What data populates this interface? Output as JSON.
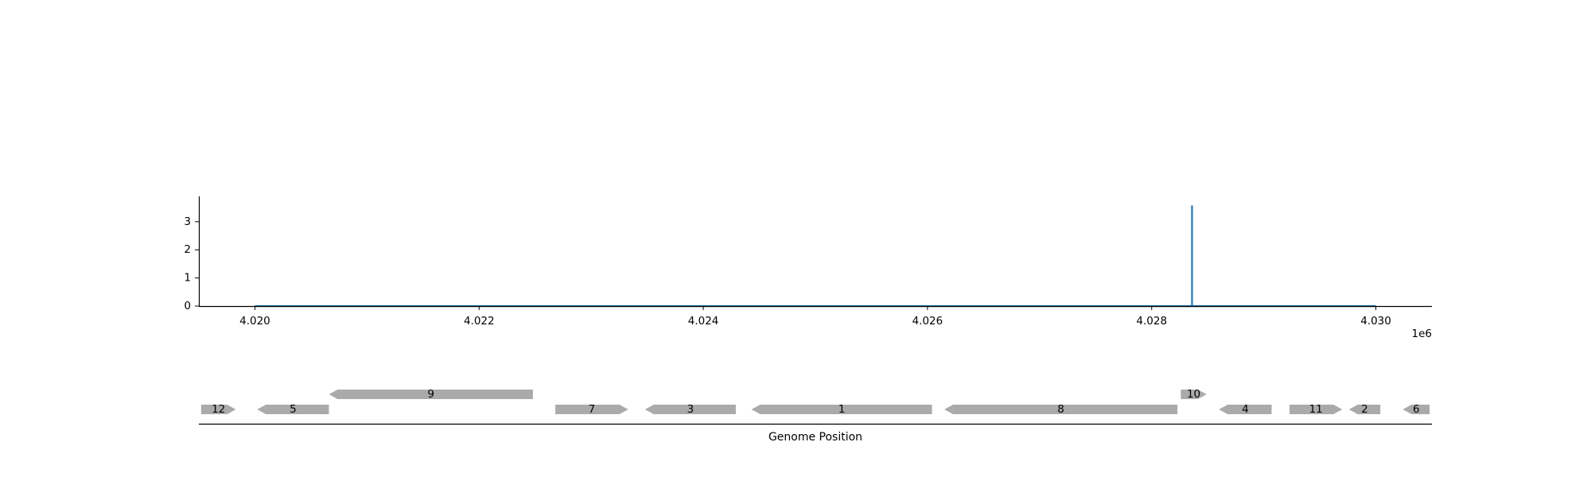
{
  "chart_data": [
    {
      "type": "line",
      "title": "",
      "xlabel": "",
      "ylabel": "",
      "offset_label": "1e6",
      "xlim": [
        4019500,
        4030500
      ],
      "ylim": [
        0,
        3.9
      ],
      "x_ticks": [
        4020000,
        4022000,
        4024000,
        4026000,
        4028000,
        4030000
      ],
      "x_tick_labels": [
        "4.020",
        "4.022",
        "4.024",
        "4.026",
        "4.028",
        "4.030"
      ],
      "y_ticks": [
        0,
        1,
        2,
        3
      ],
      "y_tick_labels": [
        "0",
        "1",
        "2",
        "3"
      ],
      "series": [
        {
          "color": "#1f77b4",
          "x": [
            4020000,
            4028360,
            4028360,
            4028360,
            4030000
          ],
          "y": [
            0,
            0,
            3.55,
            0,
            0
          ]
        }
      ],
      "grid": false
    },
    {
      "type": "gene_map",
      "title": "",
      "xlabel": "Genome Position",
      "xlim": [
        4019500,
        4030500
      ],
      "feature_color": "#aaaaaa",
      "features": [
        {
          "label": "12",
          "start": 4019520,
          "end": 4019830,
          "strand": "+",
          "row": 0
        },
        {
          "label": "5",
          "start": 4020020,
          "end": 4020660,
          "strand": "-",
          "row": 0
        },
        {
          "label": "9",
          "start": 4020660,
          "end": 4022480,
          "strand": "-",
          "row": 1
        },
        {
          "label": "7",
          "start": 4022680,
          "end": 4023330,
          "strand": "+",
          "row": 0
        },
        {
          "label": "3",
          "start": 4023480,
          "end": 4024290,
          "strand": "-",
          "row": 0
        },
        {
          "label": "1",
          "start": 4024430,
          "end": 4026040,
          "strand": "-",
          "row": 0
        },
        {
          "label": "8",
          "start": 4026150,
          "end": 4028230,
          "strand": "-",
          "row": 0
        },
        {
          "label": "10",
          "start": 4028260,
          "end": 4028490,
          "strand": "+",
          "row": 1
        },
        {
          "label": "4",
          "start": 4028600,
          "end": 4029070,
          "strand": "-",
          "row": 0
        },
        {
          "label": "11",
          "start": 4029230,
          "end": 4029700,
          "strand": "+",
          "row": 0
        },
        {
          "label": "2",
          "start": 4029760,
          "end": 4030040,
          "strand": "-",
          "row": 0
        },
        {
          "label": "6",
          "start": 4030240,
          "end": 4030480,
          "strand": "-",
          "row": 0
        }
      ]
    }
  ]
}
